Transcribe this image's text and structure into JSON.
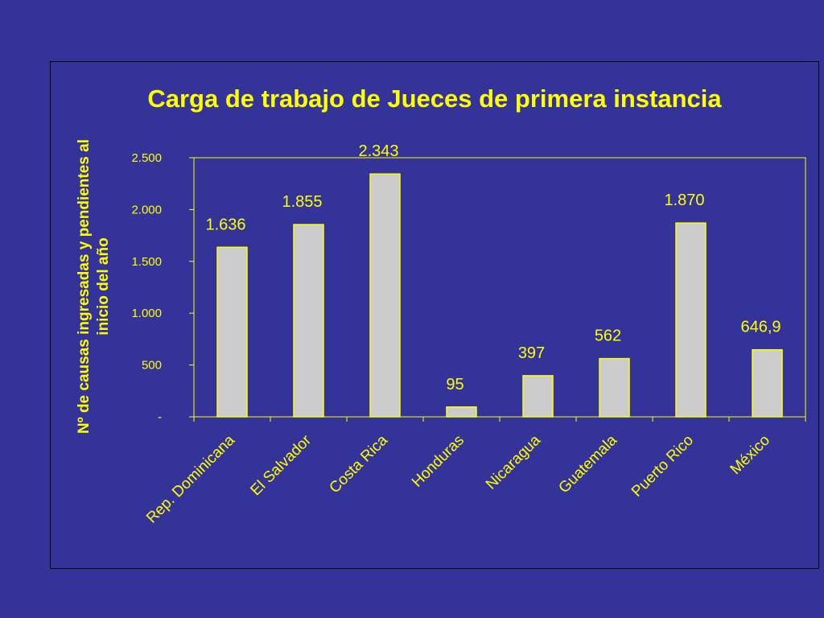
{
  "chart_data": {
    "type": "bar",
    "title": "Carga de trabajo de Jueces de primera instancia",
    "ylabel_lines": [
      "Nº de causas ingresadas y pendientes al",
      "inicio del año"
    ],
    "xlabel": "",
    "categories": [
      "Rep. Dominicana",
      "El Salvador",
      "Costa Rica",
      "Honduras",
      "Nicaragua",
      "Guatemala",
      "Puerto Rico",
      "México"
    ],
    "values": [
      1636,
      1855,
      2343,
      95,
      397,
      562,
      1870,
      646.9
    ],
    "data_labels": [
      "1.636",
      "1.855",
      "2.343",
      "95",
      "397",
      "562",
      "1.870",
      "646,9"
    ],
    "ylim": [
      0,
      2500
    ],
    "y_ticks": [
      0,
      500,
      1000,
      1500,
      2000,
      2500
    ],
    "y_tick_labels": [
      "-",
      "500",
      "1.000",
      "1.500",
      "2.000",
      "2.500"
    ],
    "grid": false,
    "legend": "none",
    "colors": {
      "background": "#333399",
      "bar_fill": "#CCCCCC",
      "bar_stroke": "#FFFF00",
      "text": "#FFFF00",
      "axis": "#FFFF00",
      "frame": "#000000"
    }
  }
}
